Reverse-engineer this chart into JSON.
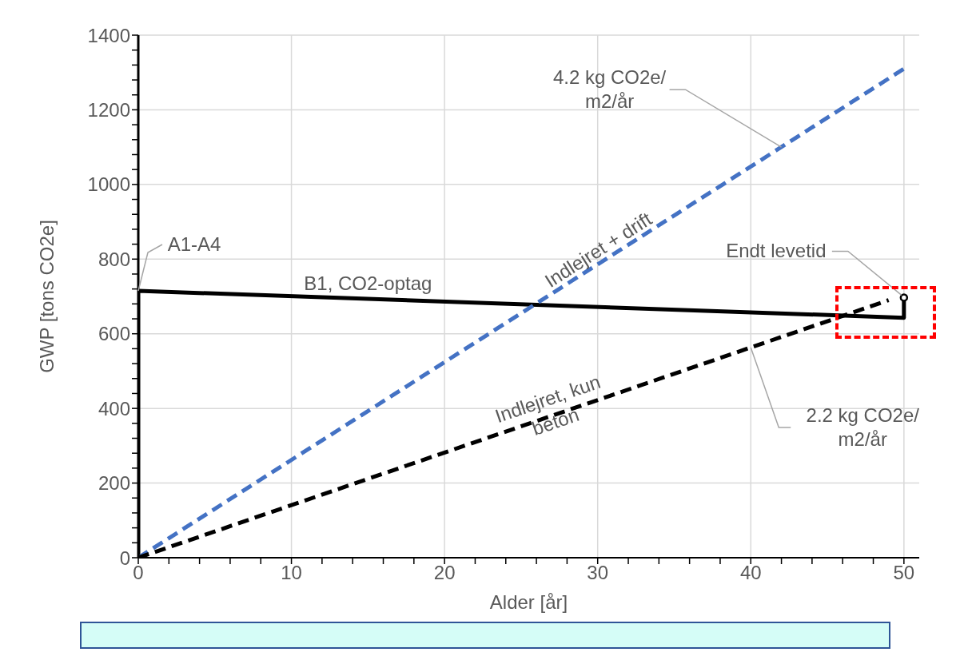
{
  "chart_data": {
    "type": "line",
    "xlabel": "Alder [år]",
    "ylabel": "GWP [tons CO2e]",
    "xlim": [
      0,
      51
    ],
    "ylim": [
      0,
      1400
    ],
    "xticks": [
      0,
      {
        "value": 2,
        "label": null
      },
      {
        "value": 4,
        "label": null
      },
      {
        "value": 6,
        "label": null
      },
      {
        "value": 8,
        "label": null
      },
      10,
      {
        "value": 12,
        "label": null
      },
      {
        "value": 14,
        "label": null
      },
      {
        "value": 16,
        "label": null
      },
      {
        "value": 18,
        "label": null
      },
      20,
      {
        "value": 22,
        "label": null
      },
      {
        "value": 24,
        "label": null
      },
      {
        "value": 26,
        "label": null
      },
      {
        "value": 28,
        "label": null
      },
      30,
      {
        "value": 32,
        "label": null
      },
      {
        "value": 34,
        "label": null
      },
      {
        "value": 36,
        "label": null
      },
      {
        "value": 38,
        "label": null
      },
      40,
      {
        "value": 42,
        "label": null
      },
      {
        "value": 44,
        "label": null
      },
      {
        "value": 46,
        "label": null
      },
      {
        "value": 48,
        "label": null
      },
      50
    ],
    "yticks": [
      0,
      {
        "value": 40,
        "label": null
      },
      {
        "value": 80,
        "label": null
      },
      {
        "value": 120,
        "label": null
      },
      {
        "value": 160,
        "label": null
      },
      200,
      {
        "value": 240,
        "label": null
      },
      {
        "value": 280,
        "label": null
      },
      {
        "value": 320,
        "label": null
      },
      {
        "value": 360,
        "label": null
      },
      400,
      {
        "value": 440,
        "label": null
      },
      {
        "value": 480,
        "label": null
      },
      {
        "value": 520,
        "label": null
      },
      {
        "value": 560,
        "label": null
      },
      600,
      {
        "value": 640,
        "label": null
      },
      {
        "value": 680,
        "label": null
      },
      {
        "value": 720,
        "label": null
      },
      {
        "value": 760,
        "label": null
      },
      800,
      {
        "value": 840,
        "label": null
      },
      {
        "value": 880,
        "label": null
      },
      {
        "value": 920,
        "label": null
      },
      {
        "value": 960,
        "label": null
      },
      1000,
      {
        "value": 1040,
        "label": null
      },
      {
        "value": 1080,
        "label": null
      },
      {
        "value": 1120,
        "label": null
      },
      {
        "value": 1160,
        "label": null
      },
      1200,
      {
        "value": 1240,
        "label": null
      },
      {
        "value": 1280,
        "label": null
      },
      {
        "value": 1320,
        "label": null
      },
      {
        "value": 1360,
        "label": null
      },
      1400
    ],
    "grid": true,
    "legend": false,
    "marker": "none",
    "series": [
      {
        "color": "#000000",
        "line_style": "solid",
        "x": [
          0,
          0,
          50,
          50
        ],
        "values": [
          0,
          715,
          643,
          697
        ]
      },
      {
        "color": "#4472c4",
        "line_style": "dashed",
        "x": [
          0,
          50
        ],
        "values": [
          0,
          1310
        ]
      },
      {
        "color": "#000000",
        "line_style": "dashed",
        "x": [
          0,
          49
        ],
        "values": [
          0,
          690
        ]
      },
      {
        "type": "scatter",
        "marker": "circle",
        "color": "#000000",
        "x": [
          50
        ],
        "values": [
          697
        ]
      }
    ],
    "annotations": [
      {
        "text": "A1-A4",
        "x": 0,
        "y": 715
      },
      {
        "text": "B1, CO2-optag",
        "x": 15,
        "y": 700
      },
      {
        "text": "Indlejret + drift",
        "x": 29,
        "y": 760
      },
      {
        "text": "Indlejret, kun\nbeton",
        "x": 27,
        "y": 373
      },
      {
        "text": "4.2 kg CO2e/\nm2/år",
        "x": 42,
        "y": 1100
      },
      {
        "text": "Endt levetid",
        "x": 50,
        "y": 697
      },
      {
        "text": "2.2 kg CO2e/\nm2/år",
        "x": 40,
        "y": 563
      }
    ]
  }
}
